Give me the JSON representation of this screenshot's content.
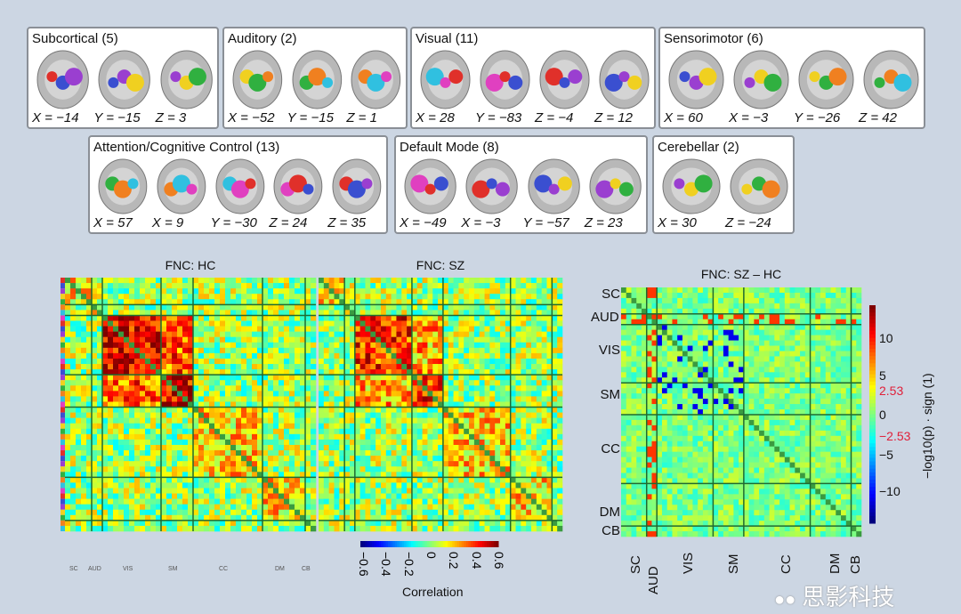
{
  "panels": [
    {
      "title": "Subcortical (5)",
      "coords": [
        "X = −14",
        "Y = −15",
        "Z = 3"
      ]
    },
    {
      "title": "Auditory (2)",
      "coords": [
        "X = −52",
        "Y = −15",
        "Z = 1"
      ]
    },
    {
      "title": "Visual (11)",
      "coords": [
        "X = 28",
        "Y = −83",
        "Z = −4",
        "Z = 12"
      ]
    },
    {
      "title": "Sensorimotor (6)",
      "coords": [
        "X = 60",
        "X = −3",
        "Y = −26",
        "Z = 42"
      ]
    },
    {
      "title": "Attention/Cognitive Control (13)",
      "coords": [
        "X = 57",
        "X = 9",
        "Y = −30",
        "Z = 24",
        "Z = 35"
      ]
    },
    {
      "title": "Default Mode (8)",
      "coords": [
        "X = −49",
        "X = −3",
        "Y = −57",
        "Z = 23"
      ]
    },
    {
      "title": "Cerebellar (2)",
      "coords": [
        "X = 30",
        "Z = −24"
      ]
    }
  ],
  "blob_colors": [
    "#e0302a",
    "#3a4fd0",
    "#9a3fd0",
    "#f0d020",
    "#30b040",
    "#f08020",
    "#30c0e0",
    "#e040c0"
  ],
  "chart_data": [
    {
      "type": "heatmap",
      "title": "FNC: HC",
      "network_sizes": [
        5,
        2,
        11,
        6,
        13,
        8,
        2
      ],
      "x_group_labels": [
        "SC",
        "AUD",
        "VIS",
        "SM",
        "CC",
        "DM",
        "CB"
      ]
    },
    {
      "type": "heatmap",
      "title": "FNC: SZ",
      "network_sizes": [
        5,
        2,
        11,
        6,
        13,
        8,
        2
      ],
      "colorbar": {
        "label": "Correlation",
        "range": [
          -0.6,
          0.6
        ],
        "ticks": [
          "−0.6",
          "−0.4",
          "−0.2",
          "0",
          "0.2",
          "0.4",
          "0.6"
        ],
        "colormap": "jet"
      }
    },
    {
      "type": "heatmap",
      "title": "FNC: SZ – HC",
      "network_sizes": [
        5,
        2,
        11,
        6,
        13,
        8,
        2
      ],
      "row_labels": [
        "SC",
        "AUD",
        "VIS",
        "SM",
        "CC",
        "DM",
        "CB"
      ],
      "col_labels": [
        "SC",
        "AUD",
        "VIS",
        "SM",
        "CC",
        "DM",
        "CB"
      ],
      "colorbar": {
        "label": "−log10(p) · sign (1)",
        "range": [
          -14,
          14
        ],
        "ticks": [
          "10",
          "5",
          "2.53",
          "0",
          "−2.53",
          "−5",
          "−10"
        ],
        "highlight_ticks": [
          "2.53",
          "−2.53"
        ],
        "highlight_color": "#e0203a",
        "colormap": "jet"
      }
    }
  ],
  "watermark": "思影科技"
}
